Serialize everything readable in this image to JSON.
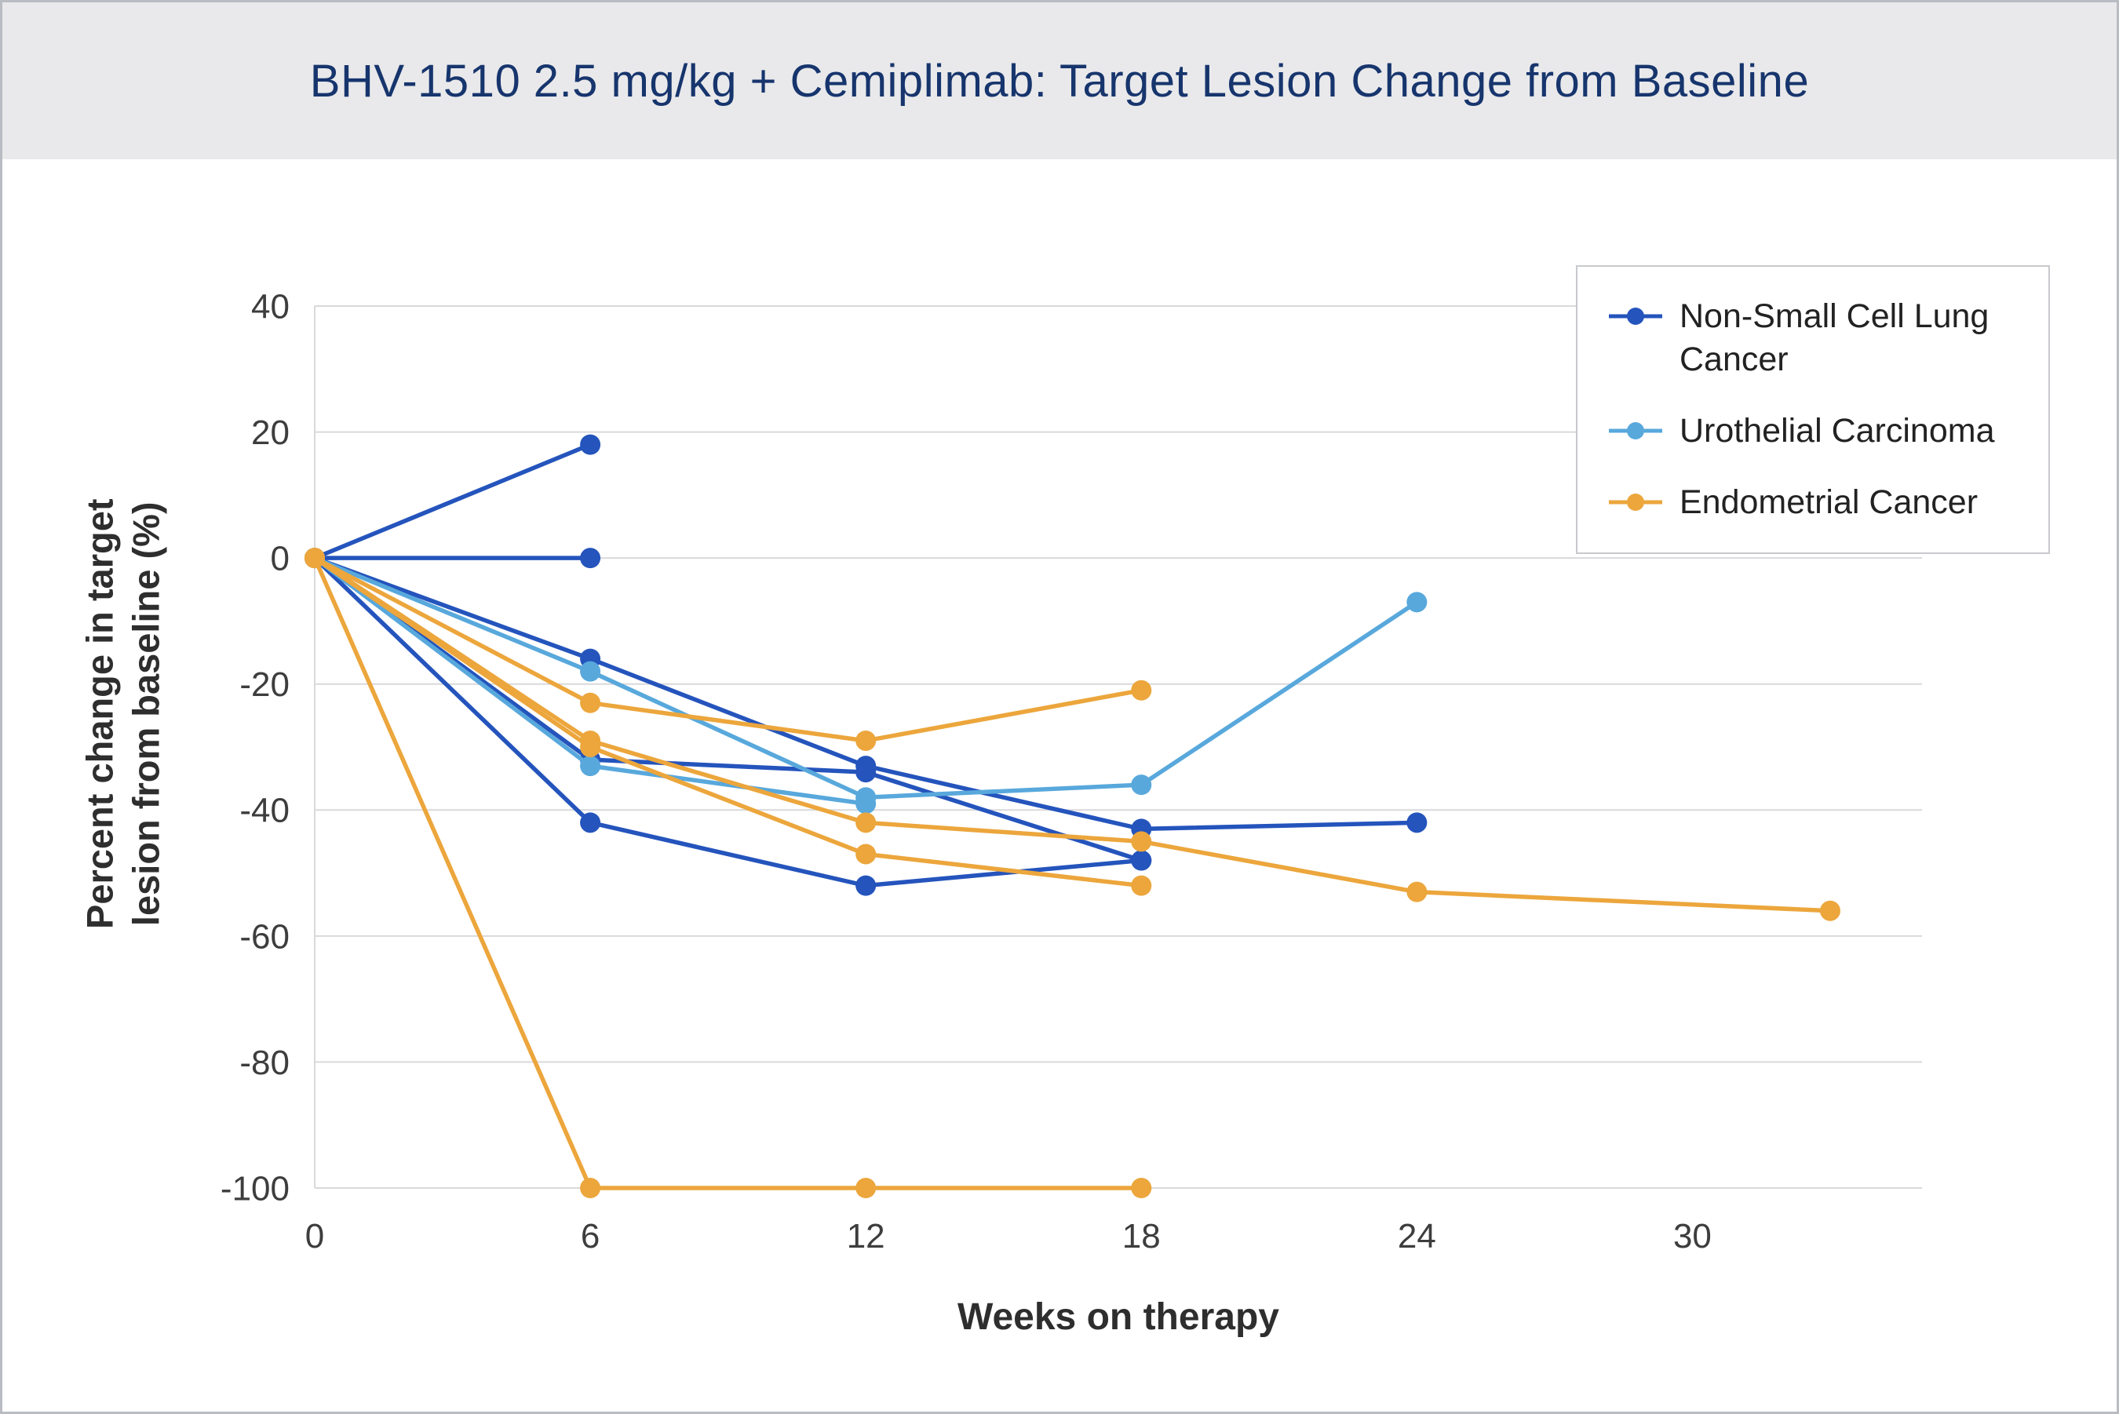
{
  "header": {
    "title": "BHV-1510 2.5 mg/kg + Cemiplimab: Target Lesion Change from Baseline"
  },
  "chart_data": {
    "type": "line",
    "title": "BHV-1510 2.5 mg/kg + Cemiplimab: Target Lesion Change from Baseline",
    "xlabel": "Weeks on therapy",
    "ylabel": "Percent change in target lesion from baseline (%)",
    "xlim": [
      0,
      35
    ],
    "ylim": [
      -100,
      40
    ],
    "xticks": [
      0,
      6,
      12,
      18,
      24,
      30
    ],
    "yticks": [
      40,
      20,
      0,
      -20,
      -40,
      -60,
      -80,
      -100
    ],
    "grid": true,
    "legend_position": "top-right",
    "colors": {
      "nsclc": "#2454bc",
      "urothelial": "#58a8dc",
      "endometrial": "#eca63c",
      "gridline": "#d9d9dc",
      "tick_text": "#3d3d3d"
    },
    "legend": [
      {
        "label": "Non-Small Cell Lung Cancer",
        "color_key": "nsclc"
      },
      {
        "label": "Urothelial Carcinoma",
        "color_key": "urothelial"
      },
      {
        "label": "Endometrial Cancer",
        "color_key": "endometrial"
      }
    ],
    "series": [
      {
        "group": "Non-Small Cell Lung Cancer",
        "color_key": "nsclc",
        "points": [
          [
            0,
            0
          ],
          [
            6,
            18
          ]
        ]
      },
      {
        "group": "Non-Small Cell Lung Cancer",
        "color_key": "nsclc",
        "points": [
          [
            0,
            0
          ],
          [
            6,
            0
          ]
        ]
      },
      {
        "group": "Non-Small Cell Lung Cancer",
        "color_key": "nsclc",
        "points": [
          [
            0,
            0
          ],
          [
            6,
            -16
          ],
          [
            12,
            -33
          ],
          [
            18,
            -43
          ],
          [
            24,
            -42
          ]
        ]
      },
      {
        "group": "Non-Small Cell Lung Cancer",
        "color_key": "nsclc",
        "points": [
          [
            0,
            0
          ],
          [
            6,
            -32
          ],
          [
            12,
            -34
          ],
          [
            18,
            -48
          ]
        ]
      },
      {
        "group": "Non-Small Cell Lung Cancer",
        "color_key": "nsclc",
        "points": [
          [
            0,
            0
          ],
          [
            6,
            -42
          ],
          [
            12,
            -52
          ],
          [
            18,
            -48
          ]
        ]
      },
      {
        "group": "Urothelial Carcinoma",
        "color_key": "urothelial",
        "points": [
          [
            0,
            0
          ],
          [
            6,
            -18
          ],
          [
            12,
            -38
          ],
          [
            18,
            -36
          ],
          [
            24,
            -7
          ]
        ]
      },
      {
        "group": "Urothelial Carcinoma",
        "color_key": "urothelial",
        "points": [
          [
            0,
            0
          ],
          [
            6,
            -33
          ],
          [
            12,
            -39
          ]
        ]
      },
      {
        "group": "Endometrial Cancer",
        "color_key": "endometrial",
        "points": [
          [
            0,
            0
          ],
          [
            6,
            -23
          ],
          [
            12,
            -29
          ],
          [
            18,
            -21
          ]
        ]
      },
      {
        "group": "Endometrial Cancer",
        "color_key": "endometrial",
        "points": [
          [
            0,
            0
          ],
          [
            6,
            -29
          ],
          [
            12,
            -42
          ],
          [
            18,
            -45
          ],
          [
            24,
            -53
          ],
          [
            33,
            -56
          ]
        ]
      },
      {
        "group": "Endometrial Cancer",
        "color_key": "endometrial",
        "points": [
          [
            0,
            0
          ],
          [
            6,
            -30
          ],
          [
            12,
            -47
          ],
          [
            18,
            -52
          ]
        ]
      },
      {
        "group": "Endometrial Cancer",
        "color_key": "endometrial",
        "points": [
          [
            0,
            0
          ],
          [
            6,
            -100
          ],
          [
            12,
            -100
          ],
          [
            18,
            -100
          ]
        ]
      }
    ]
  }
}
